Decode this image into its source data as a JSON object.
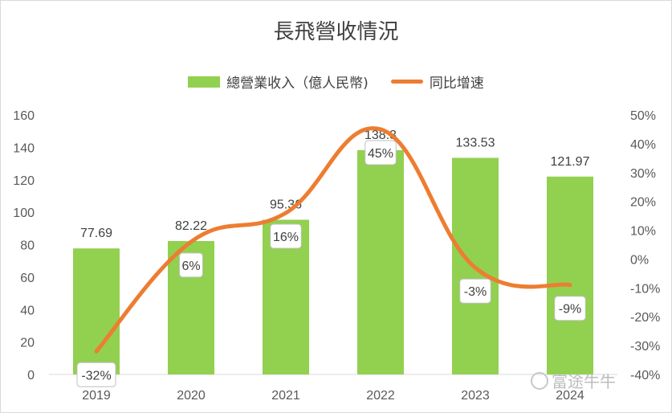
{
  "chart_data": {
    "type": "bar",
    "title": "長飛營收情況",
    "categories": [
      "2019",
      "2020",
      "2021",
      "2022",
      "2023",
      "2024"
    ],
    "series": [
      {
        "name": "總營業收入（億人民幣)",
        "type": "bar",
        "axis": "left",
        "values": [
          77.69,
          82.22,
          95.36,
          138.3,
          133.53,
          121.97
        ],
        "labels": [
          "77.69",
          "82.22",
          "95.36",
          "138.3",
          "133.53",
          "121.97"
        ],
        "color": "#92d050"
      },
      {
        "name": "同比增速",
        "type": "line",
        "axis": "right",
        "values": [
          -32,
          6,
          16,
          45,
          -3,
          -9
        ],
        "labels": [
          "-32%",
          "6%",
          "16%",
          "45%",
          "-3%",
          "-9%"
        ],
        "color": "#ed7d31"
      }
    ],
    "y_left": {
      "ylim": [
        0,
        160
      ],
      "ticks": [
        "0",
        "20",
        "40",
        "60",
        "80",
        "100",
        "120",
        "140",
        "160"
      ]
    },
    "y_right": {
      "ylim": [
        -40,
        50
      ],
      "ticks": [
        "-40%",
        "-30%",
        "-20%",
        "-10%",
        "0%",
        "10%",
        "20%",
        "30%",
        "40%",
        "50%"
      ]
    },
    "grid": false,
    "legend_position": "top"
  },
  "watermark": {
    "text": "富途牛牛"
  }
}
